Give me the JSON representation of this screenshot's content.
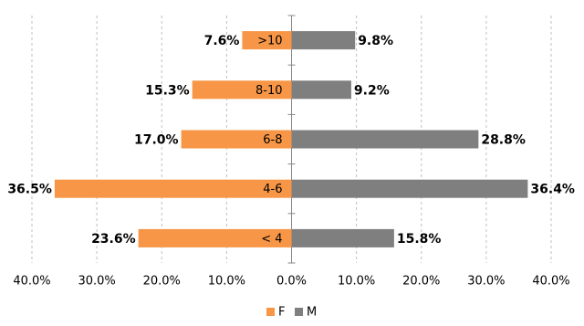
{
  "chart_data": {
    "type": "butterfly",
    "categories": [
      ">10",
      "8-10",
      "6-8",
      "4-6",
      "< 4"
    ],
    "series": [
      {
        "name": "F",
        "color": "#f79646",
        "side": "left",
        "values": [
          7.6,
          15.3,
          17.0,
          36.5,
          23.6
        ],
        "value_labels": [
          "7.6%",
          "15.3%",
          "17.0%",
          "36.5%",
          "23.6%"
        ]
      },
      {
        "name": "M",
        "color": "#7f7f7f",
        "side": "right",
        "values": [
          9.8,
          9.2,
          28.8,
          36.4,
          15.8
        ],
        "value_labels": [
          "9.8%",
          "9.2%",
          "28.8%",
          "36.4%",
          "15.8%"
        ]
      }
    ],
    "xlim": [
      -40,
      40
    ],
    "xticks": [
      {
        "value": -40,
        "label": "40.0%"
      },
      {
        "value": -30,
        "label": "30.0%"
      },
      {
        "value": -20,
        "label": "20.0%"
      },
      {
        "value": -10,
        "label": "10.0%"
      },
      {
        "value": 0,
        "label": "0.0%"
      },
      {
        "value": 10,
        "label": "10.0%"
      },
      {
        "value": 20,
        "label": "20.0%"
      },
      {
        "value": 30,
        "label": "30.0%"
      },
      {
        "value": 40,
        "label": "40.0%"
      }
    ],
    "grid": true,
    "legend": "bottom"
  }
}
